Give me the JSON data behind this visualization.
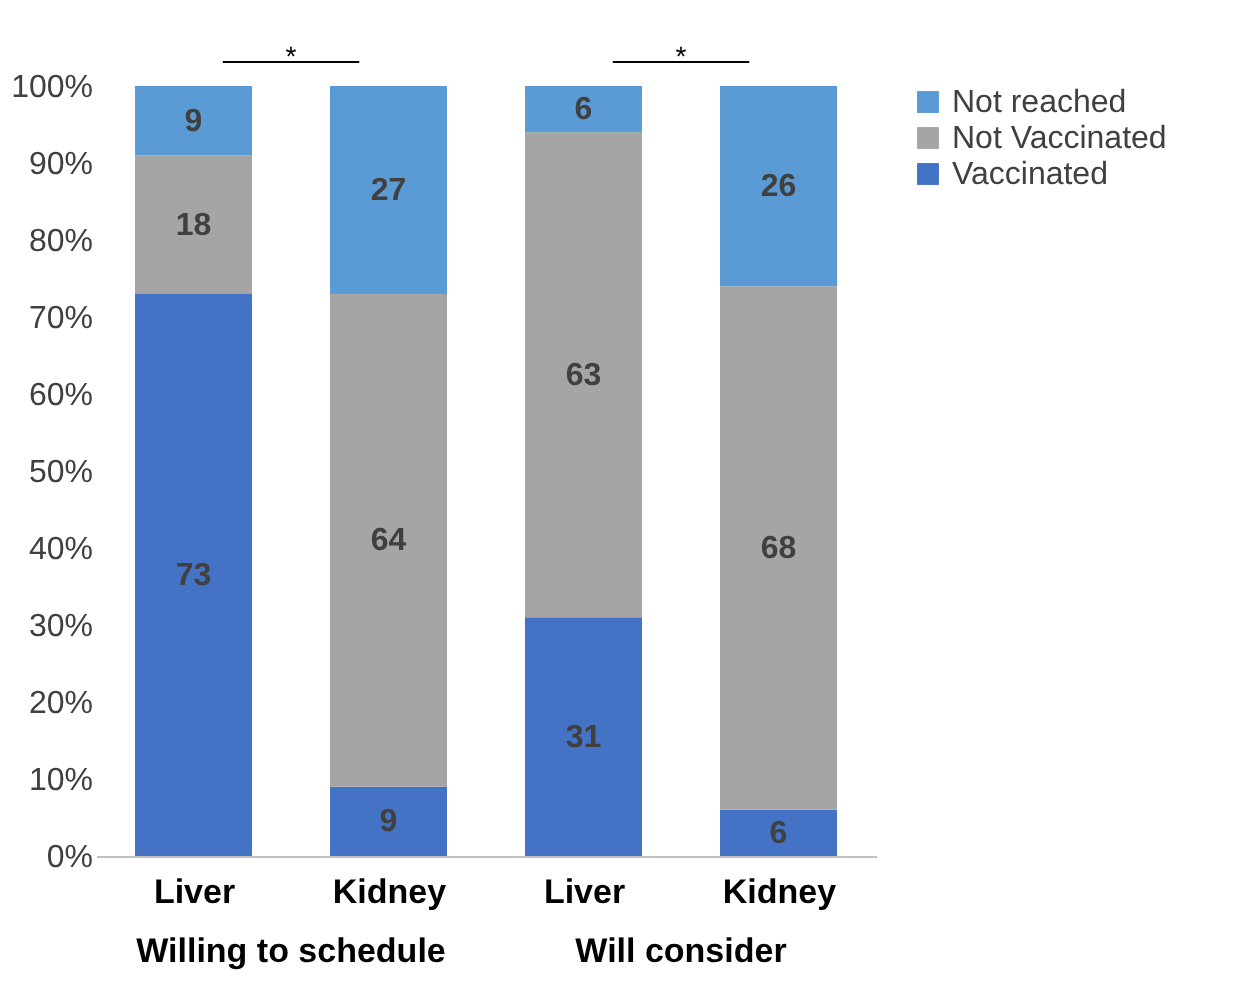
{
  "chart_data": {
    "type": "bar",
    "stacked": true,
    "categories": [
      "Liver",
      "Kidney",
      "Liver",
      "Kidney"
    ],
    "series": [
      {
        "name": "Vaccinated",
        "color": "#4472c4",
        "values": [
          73,
          9,
          31,
          6
        ]
      },
      {
        "name": "Not Vaccinated",
        "color": "#a5a5a5",
        "values": [
          18,
          64,
          63,
          68
        ]
      },
      {
        "name": "Not reached",
        "color": "#5b9bd5",
        "values": [
          9,
          27,
          6,
          26
        ]
      }
    ],
    "ylim": [
      0,
      100
    ],
    "yticks": [
      {
        "value": 0,
        "label": "0%"
      },
      {
        "value": 10,
        "label": "10%"
      },
      {
        "value": 20,
        "label": "20%"
      },
      {
        "value": 30,
        "label": "30%"
      },
      {
        "value": 40,
        "label": "40%"
      },
      {
        "value": 50,
        "label": "50%"
      },
      {
        "value": 60,
        "label": "60%"
      },
      {
        "value": 70,
        "label": "70%"
      },
      {
        "value": 80,
        "label": "80%"
      },
      {
        "value": 90,
        "label": "90%"
      },
      {
        "value": 100,
        "label": "100%"
      }
    ],
    "data_labels": true,
    "legend": "right",
    "grid": false,
    "annotations": [
      "*",
      "*",
      "Willing to schedule",
      "Will consider"
    ]
  }
}
